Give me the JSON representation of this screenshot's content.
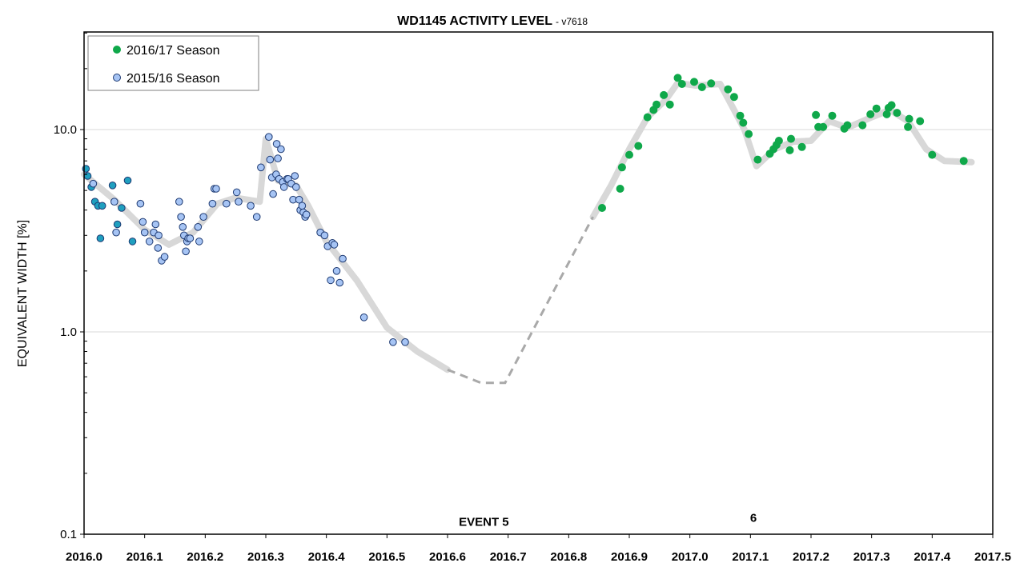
{
  "chart_data": {
    "type": "scatter",
    "title": "WD1145 ACTIVITY LEVEL",
    "subtitle": "- v7618",
    "xlabel": "",
    "ylabel": "EQUIVALENT WIDTH [%]",
    "xlim": [
      2016.0,
      2017.5
    ],
    "ylim": [
      0.1,
      30
    ],
    "yscale": "log",
    "grid": true,
    "legend_position": "top-left",
    "x_ticks": [
      "2016.0",
      "2016.1",
      "2016.2",
      "2016.3",
      "2016.4",
      "2016.5",
      "2016.6",
      "2016.7",
      "2016.8",
      "2016.9",
      "2017.0",
      "2017.1",
      "2017.2",
      "2017.3",
      "2017.4",
      "2017.5"
    ],
    "y_ticks": [
      "0.1",
      "1.0",
      "10.0"
    ],
    "legend": [
      "2016/17 Season",
      "2015/16 Season"
    ],
    "colors": {
      "season_2016_17": "#0fa84a",
      "season_2015_16": "#a6c4f4",
      "season_2015_16_early": "#1f9fbf",
      "trend": "#d8d8d8",
      "trend_dashed": "#a9a9a9"
    },
    "annotations": [
      {
        "text": "EVENT 5",
        "x": 2016.66,
        "y": 0.11
      },
      {
        "text": "6",
        "x": 2017.105,
        "y": 0.115
      }
    ],
    "series": [
      {
        "name": "2016/17 Season",
        "x": [
          2016.855,
          2016.885,
          2016.888,
          2016.9,
          2016.915,
          2016.93,
          2016.94,
          2016.945,
          2016.957,
          2016.967,
          2016.98,
          2016.987,
          2017.007,
          2017.02,
          2017.035,
          2017.063,
          2017.073,
          2017.083,
          2017.088,
          2017.097,
          2017.112,
          2017.132,
          2017.138,
          2017.143,
          2017.147,
          2017.165,
          2017.167,
          2017.185,
          2017.208,
          2017.212,
          2017.22,
          2017.235,
          2017.255,
          2017.26,
          2017.285,
          2017.298,
          2017.308,
          2017.325,
          2017.328,
          2017.333,
          2017.342,
          2017.36,
          2017.362,
          2017.38,
          2017.4,
          2017.452
        ],
        "y": [
          4.1,
          5.1,
          6.5,
          7.5,
          8.3,
          11.5,
          12.5,
          13.3,
          14.8,
          13.3,
          18,
          16.8,
          17.2,
          16.2,
          16.9,
          15.8,
          14.5,
          11.7,
          10.8,
          9.5,
          7.1,
          7.6,
          8.0,
          8.4,
          8.8,
          7.9,
          9.0,
          8.2,
          11.8,
          10.3,
          10.3,
          11.7,
          10.1,
          10.5,
          10.5,
          11.9,
          12.7,
          11.9,
          12.8,
          13.2,
          12.1,
          10.3,
          11.3,
          11.0,
          7.5,
          7.0
        ]
      },
      {
        "name": "2015/16 Season",
        "x": [
          2016.003,
          2016.006,
          2016.012,
          2016.015,
          2016.018,
          2016.023,
          2016.027,
          2016.03,
          2016.047,
          2016.05,
          2016.053,
          2016.055,
          2016.062,
          2016.072,
          2016.08,
          2016.093,
          2016.097,
          2016.1,
          2016.108,
          2016.115,
          2016.118,
          2016.122,
          2016.123,
          2016.128,
          2016.133,
          2016.157,
          2016.16,
          2016.163,
          2016.165,
          2016.168,
          2016.17,
          2016.172,
          2016.175,
          2016.188,
          2016.19,
          2016.197,
          2016.212,
          2016.215,
          2016.218,
          2016.235,
          2016.252,
          2016.255,
          2016.275,
          2016.285,
          2016.292,
          2016.305,
          2016.307,
          2016.31,
          2016.312,
          2016.317,
          2016.318,
          2016.32,
          2016.322,
          2016.325,
          2016.328,
          2016.33,
          2016.335,
          2016.337,
          2016.342,
          2016.345,
          2016.348,
          2016.35,
          2016.355,
          2016.357,
          2016.36,
          2016.362,
          2016.365,
          2016.367,
          2016.39,
          2016.397,
          2016.402,
          2016.407,
          2016.41,
          2016.413,
          2016.417,
          2016.422,
          2016.427,
          2016.462,
          2016.51,
          2016.53
        ],
        "y": [
          6.4,
          5.9,
          5.2,
          5.4,
          4.4,
          4.2,
          2.9,
          4.2,
          5.3,
          4.4,
          3.1,
          3.4,
          4.1,
          5.6,
          2.8,
          4.3,
          3.5,
          3.1,
          2.8,
          3.1,
          3.4,
          2.6,
          3.0,
          2.25,
          2.35,
          4.4,
          3.7,
          3.3,
          3.0,
          2.5,
          2.8,
          2.9,
          2.9,
          3.3,
          2.8,
          3.7,
          4.3,
          5.1,
          5.1,
          4.3,
          4.9,
          4.4,
          4.2,
          3.7,
          6.5,
          9.2,
          7.1,
          5.8,
          4.8,
          6.0,
          8.5,
          7.2,
          5.7,
          8.0,
          5.5,
          5.2,
          5.7,
          5.7,
          5.4,
          4.5,
          5.9,
          5.2,
          4.5,
          4.0,
          4.2,
          3.9,
          3.7,
          3.8,
          3.1,
          3.0,
          2.65,
          1.8,
          2.75,
          2.7,
          2.0,
          1.75,
          2.3,
          1.18,
          0.89,
          0.89
        ]
      }
    ],
    "trend_line": {
      "x": [
        2016.0,
        2016.05,
        2016.1,
        2016.14,
        2016.18,
        2016.22,
        2016.25,
        2016.29,
        2016.3,
        2016.32,
        2016.35,
        2016.37,
        2016.4,
        2016.45,
        2016.5,
        2016.55,
        2016.6,
        2016.655,
        2016.695,
        2016.84,
        2016.87,
        2016.9,
        2016.93,
        2016.96,
        2016.98,
        2017.01,
        2017.05,
        2017.07,
        2017.09,
        2017.11,
        2017.14,
        2017.17,
        2017.2,
        2017.23,
        2017.26,
        2017.3,
        2017.33,
        2017.36,
        2017.39,
        2017.42,
        2017.465
      ],
      "y": [
        6.0,
        4.5,
        3.2,
        2.7,
        3.1,
        4.3,
        4.6,
        4.4,
        9.0,
        5.6,
        5.3,
        4.2,
        2.8,
        1.8,
        1.05,
        0.8,
        0.65,
        0.56,
        0.56,
        3.7,
        5.3,
        8.0,
        11.5,
        14.0,
        17.0,
        16.5,
        16.8,
        13.0,
        10.0,
        6.6,
        8.0,
        8.7,
        8.8,
        11.0,
        10.2,
        11.5,
        12.5,
        11.0,
        8.0,
        7.0,
        6.9
      ],
      "dashed_range": [
        2016.6,
        2016.85
      ]
    }
  }
}
